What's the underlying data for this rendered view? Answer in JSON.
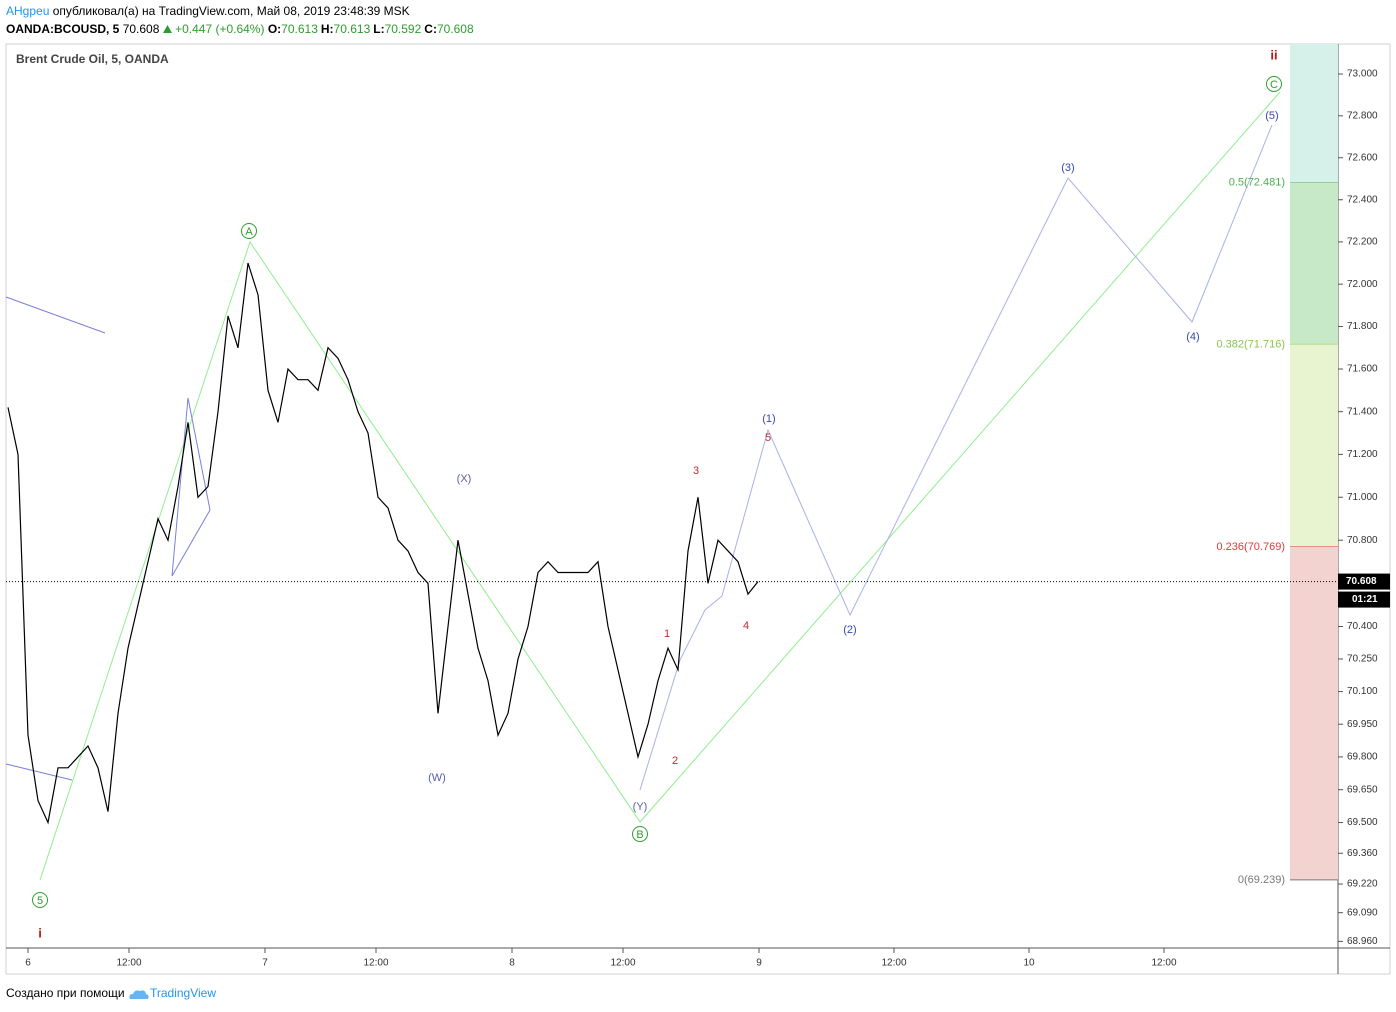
{
  "header": {
    "author": "AHgpeu",
    "published": "опубликовал(а) на TradingView.com, Май 08, 2019 23:48:39 MSK",
    "symbol": "OANDA:BCOUSD, 5",
    "last": "70.608",
    "change": "+0.447 (+0.64%)",
    "ohlc": [
      {
        "key": "O:",
        "value": "70.613"
      },
      {
        "key": "H:",
        "value": "70.613"
      },
      {
        "key": "L:",
        "value": "70.592"
      },
      {
        "key": "C:",
        "value": "70.608"
      }
    ]
  },
  "chart_data": {
    "type": "line",
    "title": "Brent Crude Oil, 5, OANDA",
    "log_scale": true,
    "color": "#000000",
    "values": [
      71.42,
      71.2,
      69.9,
      69.6,
      69.5,
      69.75,
      69.75,
      69.8,
      69.85,
      69.75,
      69.55,
      70.0,
      70.3,
      70.5,
      70.7,
      70.9,
      70.8,
      71.05,
      71.35,
      71.0,
      71.05,
      71.4,
      71.85,
      71.7,
      72.1,
      71.95,
      71.5,
      71.35,
      71.6,
      71.55,
      71.55,
      71.5,
      71.7,
      71.65,
      71.55,
      71.4,
      71.3,
      71.0,
      70.95,
      70.8,
      70.75,
      70.65,
      70.6,
      70.0,
      70.4,
      70.8,
      70.55,
      70.3,
      70.15,
      69.9,
      70.0,
      70.25,
      70.4,
      70.65,
      70.7,
      70.65,
      70.65,
      70.65,
      70.65,
      70.7,
      70.4,
      70.2,
      70.0,
      69.8,
      69.95,
      70.15,
      70.3,
      70.2,
      70.75,
      71.0,
      70.6,
      70.8,
      70.75,
      70.7,
      70.55,
      70.608
    ],
    "ylim": [
      68.93,
      73.144
    ],
    "yticks": [
      {
        "value": 73,
        "label": "73.000"
      },
      {
        "value": 72.8,
        "label": "72.800"
      },
      {
        "value": 72.6,
        "label": "72.600"
      },
      {
        "value": 72.4,
        "label": "72.400"
      },
      {
        "value": 72.2,
        "label": "72.200"
      },
      {
        "value": 72,
        "label": "72.000"
      },
      {
        "value": 71.8,
        "label": "71.800"
      },
      {
        "value": 71.6,
        "label": "71.600"
      },
      {
        "value": 71.4,
        "label": "71.400"
      },
      {
        "value": 71.2,
        "label": "71.200"
      },
      {
        "value": 71,
        "label": "71.000"
      },
      {
        "value": 70.8,
        "label": "70.800"
      },
      {
        "value": 70.4,
        "label": "70.400"
      },
      {
        "value": 70.25,
        "label": "70.250"
      },
      {
        "value": 70.1,
        "label": "70.100"
      },
      {
        "value": 69.95,
        "label": "69.950"
      },
      {
        "value": 69.8,
        "label": "69.800"
      },
      {
        "value": 69.65,
        "label": "69.650"
      },
      {
        "value": 69.5,
        "label": "69.500"
      },
      {
        "value": 69.36,
        "label": "69.360"
      },
      {
        "value": 69.22,
        "label": "69.220"
      },
      {
        "value": 69.09,
        "label": "69.090"
      },
      {
        "value": 68.96,
        "label": "68.960"
      }
    ],
    "xtick_labels": [
      "6",
      "12:00",
      "7",
      "12:00",
      "8",
      "12:00",
      "9",
      "12:00",
      "10",
      "12:00"
    ],
    "last_price": 70.608,
    "countdown": "01:21",
    "fib_levels": [
      {
        "value": 72.481,
        "label": "0.5(72.481)",
        "color": "#4caf50"
      },
      {
        "value": 71.716,
        "label": "0.382(71.716)",
        "color": "#8bc34a"
      },
      {
        "value": 70.769,
        "label": "0.236(70.769)",
        "color": "#e53935"
      },
      {
        "value": 69.239,
        "label": "0(69.239)",
        "color": "#787878"
      }
    ],
    "waves": [
      "i",
      "5",
      "A",
      "(X)",
      "(W)",
      "(Y)",
      "B",
      "1",
      "2",
      "3",
      "4",
      "5",
      "(1)",
      "(2)",
      "(3)",
      "(4)",
      "(5)",
      "C",
      "ii"
    ]
  }
}
